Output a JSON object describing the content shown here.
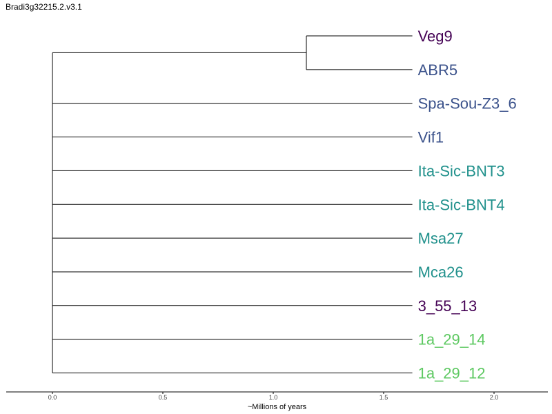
{
  "title": "Bradi3g32215.2.v3.1",
  "chart_data": {
    "type": "dendrogram",
    "xlabel": "~Millions of years",
    "xlim": [
      -0.21,
      2.24
    ],
    "xticks": [
      0.0,
      0.5,
      1.0,
      1.5,
      2.0
    ],
    "xtick_labels": [
      "0.0",
      "0.5",
      "1.0",
      "1.5",
      "2.0"
    ],
    "tip_depth": 1.63,
    "root_depth": 0.0,
    "clade_depth": 1.15,
    "leaves": [
      {
        "label": "Veg9",
        "color": "#440154"
      },
      {
        "label": "ABR5",
        "color": "#3b528b"
      },
      {
        "label": "Spa-Sou-Z3_6",
        "color": "#3b528b"
      },
      {
        "label": "Vif1",
        "color": "#3b528b"
      },
      {
        "label": "Ita-Sic-BNT3",
        "color": "#21918c"
      },
      {
        "label": "Ita-Sic-BNT4",
        "color": "#21918c"
      },
      {
        "label": "Msa27",
        "color": "#21918c"
      },
      {
        "label": "Mca26",
        "color": "#21918c"
      },
      {
        "label": "3_55_13",
        "color": "#440154"
      },
      {
        "label": "1a_29_14",
        "color": "#5ec962"
      },
      {
        "label": "1a_29_12",
        "color": "#5ec962"
      }
    ],
    "clades": [
      {
        "children": [
          "Veg9",
          "ABR5"
        ],
        "depth": 1.15
      }
    ]
  }
}
